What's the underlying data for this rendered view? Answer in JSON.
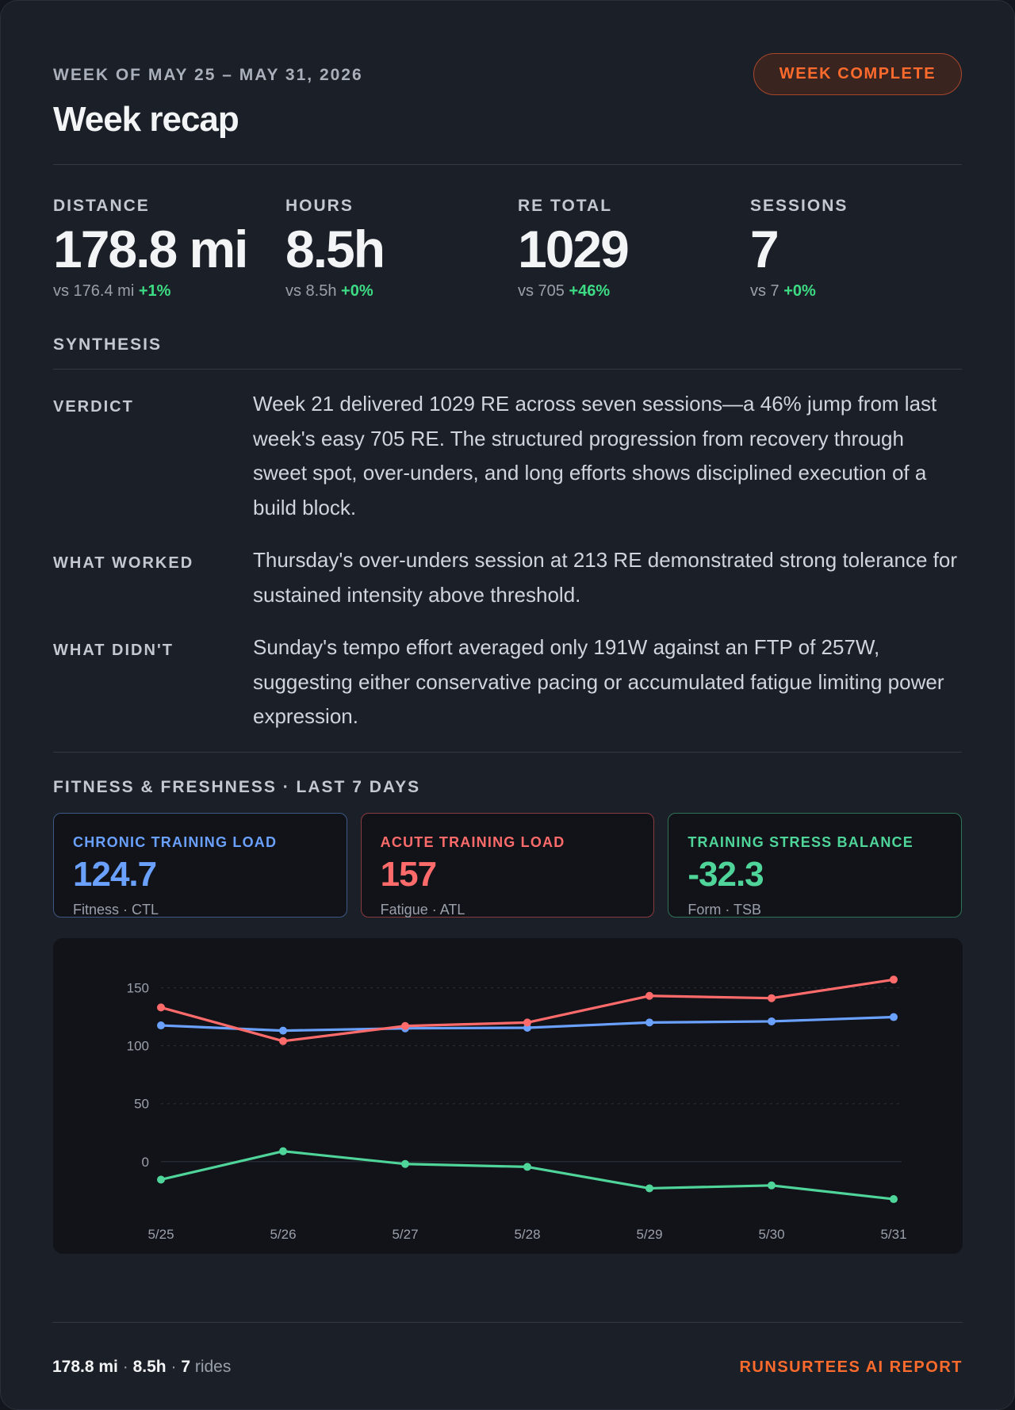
{
  "header": {
    "eyebrow": "WEEK OF MAY 25 – MAY 31, 2026",
    "title": "Week recap",
    "badge": "WEEK COMPLETE"
  },
  "stats": [
    {
      "label": "DISTANCE",
      "value": "178.8 mi",
      "compare": "vs 176.4 mi",
      "delta": "+1%"
    },
    {
      "label": "HOURS",
      "value": "8.5h",
      "compare": "vs 8.5h",
      "delta": "+0%"
    },
    {
      "label": "RE TOTAL",
      "value": "1029",
      "compare": "vs 705",
      "delta": "+46%"
    },
    {
      "label": "SESSIONS",
      "value": "7",
      "compare": "vs 7",
      "delta": "+0%"
    }
  ],
  "synthesis": {
    "heading": "SYNTHESIS",
    "rows": [
      {
        "label": "VERDICT",
        "text": "Week 21 delivered 1029 RE across seven sessions—a 46% jump from last week's easy 705 RE. The structured progression from recovery through sweet spot, over-unders, and long efforts shows disciplined execution of a build block."
      },
      {
        "label": "WHAT WORKED",
        "text": "Thursday's over-unders session at 213 RE demonstrated strong tolerance for sustained intensity above threshold."
      },
      {
        "label": "WHAT DIDN'T",
        "text": "Sunday's tempo effort averaged only 191W against an FTP of 257W, suggesting either conservative pacing or accumulated fatigue limiting power expression."
      }
    ]
  },
  "fitness": {
    "heading": "FITNESS & FRESHNESS · LAST 7 DAYS",
    "tiles": [
      {
        "label": "CHRONIC TRAINING LOAD",
        "value": "124.7",
        "sub": "Fitness · CTL"
      },
      {
        "label": "ACUTE TRAINING LOAD",
        "value": "157",
        "sub": "Fatigue · ATL"
      },
      {
        "label": "TRAINING STRESS BALANCE",
        "value": "-32.3",
        "sub": "Form · TSB"
      }
    ]
  },
  "chart_data": {
    "type": "line",
    "x": [
      "5/25",
      "5/26",
      "5/27",
      "5/28",
      "5/29",
      "5/30",
      "5/31"
    ],
    "yticks": [
      0,
      50,
      100,
      150
    ],
    "ylim": [
      -35,
      162
    ],
    "grid": true,
    "series": [
      {
        "key": "ctl",
        "color": "#6aa1ff",
        "values": [
          117.5,
          113,
          115,
          115.5,
          120,
          121,
          124.7
        ]
      },
      {
        "key": "atl",
        "color": "#ff6b6b",
        "values": [
          133,
          104,
          117,
          120,
          143,
          141,
          157
        ]
      },
      {
        "key": "tsb",
        "color": "#4fd49a",
        "values": [
          -15.5,
          9,
          -2,
          -4.5,
          -23,
          -20.5,
          -32.3
        ]
      }
    ]
  },
  "footer": {
    "distance": "178.8 mi",
    "hours": "8.5h",
    "rides_count": "7",
    "rides_word": "rides",
    "sep": "·",
    "brand": "RUNSURTEES AI REPORT"
  }
}
